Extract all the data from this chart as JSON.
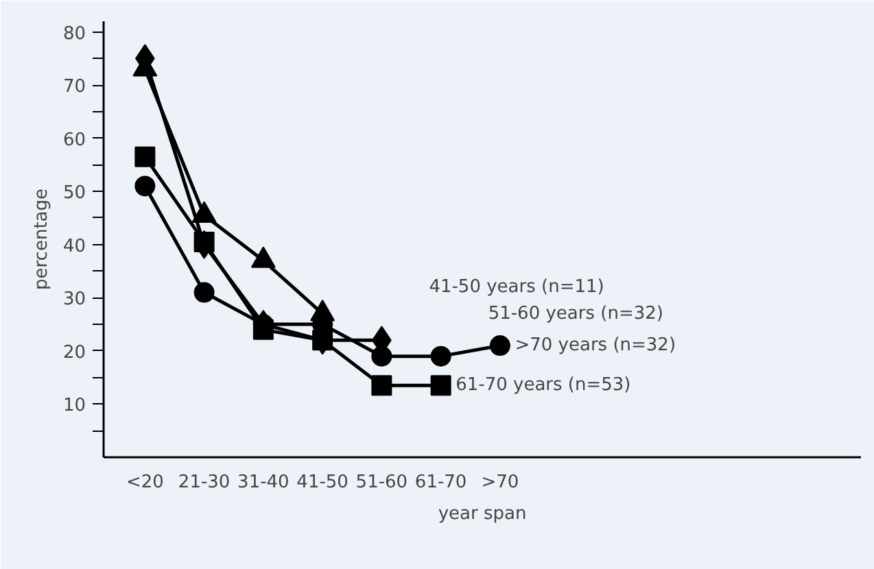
{
  "chart_data": {
    "type": "line",
    "xlabel": "year span",
    "ylabel": "percentage",
    "categories": [
      "<20",
      "21-30",
      "31-40",
      "41-50",
      "51-60",
      "61-70",
      ">70"
    ],
    "ylim": [
      0,
      82
    ],
    "yticks": [
      {
        "value": 5,
        "label": null
      },
      10,
      {
        "value": 15,
        "label": null
      },
      20,
      {
        "value": 25,
        "label": null
      },
      30,
      {
        "value": 35,
        "label": null
      },
      40,
      {
        "value": 45,
        "label": null
      },
      50,
      {
        "value": 55,
        "label": null
      },
      60,
      {
        "value": 65,
        "label": null
      },
      70,
      {
        "value": 75,
        "label": null
      },
      80
    ],
    "grid": false,
    "line_style": "solid",
    "series": [
      {
        "name": "41-50 years (n=11)",
        "color": "#000000",
        "marker": "triangle",
        "values": [
          73,
          45.5,
          37,
          27,
          null,
          null,
          null
        ]
      },
      {
        "name": "51-60 years (n=32)",
        "color": "#000000",
        "marker": "diamond",
        "values": [
          75,
          40,
          25,
          22,
          22,
          null,
          null
        ]
      },
      {
        "name": "61-70 years (n=53)",
        "color": "#000000",
        "marker": "square",
        "values": [
          56.5,
          40.5,
          24,
          22,
          13.5,
          13.5,
          null
        ]
      },
      {
        "name": ">70 years (n=32)",
        "color": "#000000",
        "marker": "circle",
        "values": [
          51,
          31,
          25,
          25,
          19,
          19,
          21
        ]
      }
    ]
  }
}
